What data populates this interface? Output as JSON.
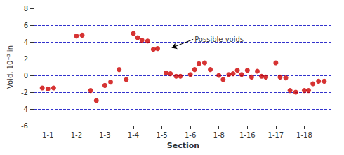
{
  "chart_data": {
    "type": "scatter",
    "xlabel": "Section",
    "ylabel": "Void, 10⁻³ in",
    "x": [
      -0.2,
      0.0,
      0.2,
      1.0,
      1.2,
      1.5,
      1.7,
      2.0,
      2.2,
      2.5,
      2.75,
      3.0,
      3.15,
      3.3,
      3.5,
      3.7,
      3.85,
      4.15,
      4.3,
      4.5,
      4.65,
      5.0,
      5.15,
      5.3,
      5.5,
      5.7,
      6.0,
      6.15,
      6.35,
      6.5,
      6.65,
      6.8,
      7.0,
      7.15,
      7.35,
      7.5,
      7.65,
      8.0,
      8.15,
      8.35,
      8.5,
      8.7,
      9.0,
      9.15,
      9.3,
      9.5,
      9.7
    ],
    "values": [
      -1.5,
      -1.6,
      -1.5,
      4.7,
      4.8,
      -1.8,
      -3.0,
      -1.2,
      -0.8,
      0.7,
      -0.5,
      5.0,
      4.5,
      4.2,
      4.1,
      3.1,
      3.2,
      0.3,
      0.2,
      -0.1,
      -0.1,
      0.1,
      0.7,
      1.4,
      1.5,
      0.7,
      0.0,
      -0.5,
      0.1,
      0.2,
      0.6,
      0.1,
      0.6,
      -0.2,
      0.5,
      -0.1,
      -0.2,
      1.5,
      -0.2,
      -0.3,
      -1.8,
      -2.0,
      -1.8,
      -1.8,
      -1.0,
      -0.7,
      -0.7
    ],
    "color": "#cc0000",
    "xlim": [
      -0.5,
      10.0
    ],
    "xticks": [
      {
        "value": 0,
        "label": "1-1"
      },
      {
        "value": 1,
        "label": "1-2"
      },
      {
        "value": 2,
        "label": "1-3"
      },
      {
        "value": 3,
        "label": "1-4"
      },
      {
        "value": 4,
        "label": "1-5"
      },
      {
        "value": 5,
        "label": "1-6"
      },
      {
        "value": 6,
        "label": "1-8"
      },
      {
        "value": 7,
        "label": "1-16"
      },
      {
        "value": 8,
        "label": "1-17"
      },
      {
        "value": 9,
        "label": "1-18"
      }
    ],
    "ylim": [
      -6,
      8
    ],
    "yticks": [
      -6,
      -4,
      -2,
      0,
      2,
      4,
      6,
      8
    ],
    "grid": false,
    "hlines": {
      "values": [
        -4.0,
        -2.0,
        0.0,
        4.0,
        6.0
      ],
      "color": "#3333cc",
      "line_style": "dashed"
    },
    "annotations": [
      {
        "text": "Possible voids",
        "x": 5.1,
        "y": 4.3,
        "arrow_x": 4.35,
        "arrow_y": 3.3
      }
    ]
  }
}
